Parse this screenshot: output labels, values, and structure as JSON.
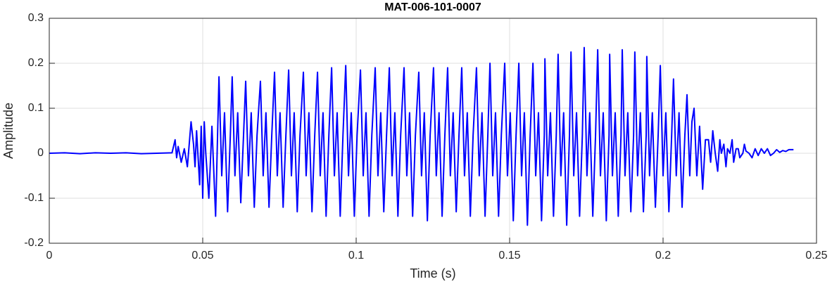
{
  "chart_data": {
    "type": "line",
    "title": "MAT-006-101-0007",
    "xlabel": "Time (s)",
    "ylabel": "Amplitude",
    "color": "#0000ff",
    "grid": true,
    "xlim": [
      0,
      0.25
    ],
    "xticks": [
      0,
      0.05,
      0.1,
      0.15,
      0.2,
      0.25
    ],
    "ylim": [
      -0.2,
      0.3
    ],
    "yticks": [
      -0.2,
      -0.1,
      0,
      0.1,
      0.2,
      0.3
    ],
    "x": [
      0,
      0.005,
      0.01,
      0.015,
      0.02,
      0.025,
      0.03,
      0.035,
      0.04,
      0.041,
      0.0415,
      0.042,
      0.043,
      0.044,
      0.045,
      0.0462,
      0.047,
      0.0475,
      0.048,
      0.049,
      0.0495,
      0.05,
      0.0505,
      0.051,
      0.052,
      0.053,
      0.0542,
      0.0553,
      0.0562,
      0.0571,
      0.0581,
      0.059,
      0.0596,
      0.0605,
      0.0614,
      0.0624,
      0.0633,
      0.064,
      0.0649,
      0.0658,
      0.0668,
      0.0677,
      0.0688,
      0.0697,
      0.0706,
      0.0716,
      0.0725,
      0.0734,
      0.0743,
      0.0752,
      0.0762,
      0.0771,
      0.078,
      0.0789,
      0.0798,
      0.0808,
      0.0817,
      0.0828,
      0.0837,
      0.0846,
      0.0856,
      0.0865,
      0.0874,
      0.0883,
      0.0892,
      0.0902,
      0.0911,
      0.092,
      0.0929,
      0.0938,
      0.0948,
      0.0957,
      0.0966,
      0.0975,
      0.0984,
      0.0994,
      0.1003,
      0.1014,
      0.1023,
      0.1032,
      0.1042,
      0.1051,
      0.1062,
      0.1071,
      0.108,
      0.109,
      0.1099,
      0.1108,
      0.1117,
      0.1126,
      0.1136,
      0.1145,
      0.1156,
      0.1165,
      0.1174,
      0.1184,
      0.1193,
      0.1204,
      0.1213,
      0.1222,
      0.1232,
      0.1241,
      0.1252,
      0.1261,
      0.127,
      0.128,
      0.1289,
      0.1298,
      0.1307,
      0.1316,
      0.1326,
      0.1335,
      0.1344,
      0.1353,
      0.1362,
      0.1372,
      0.1381,
      0.1392,
      0.1401,
      0.141,
      0.142,
      0.1429,
      0.1436,
      0.1445,
      0.1454,
      0.1464,
      0.1473,
      0.1484,
      0.1493,
      0.1502,
      0.1512,
      0.1521,
      0.153,
      0.1539,
      0.1548,
      0.1558,
      0.1567,
      0.1576,
      0.1585,
      0.1594,
      0.1604,
      0.1613,
      0.1615,
      0.1624,
      0.1633,
      0.1643,
      0.1652,
      0.1658,
      0.1667,
      0.1676,
      0.1686,
      0.1695,
      0.17,
      0.1709,
      0.1718,
      0.1728,
      0.1737,
      0.1743,
      0.1752,
      0.1761,
      0.1771,
      0.178,
      0.1787,
      0.1796,
      0.1805,
      0.1815,
      0.1824,
      0.1826,
      0.1835,
      0.1844,
      0.1854,
      0.1863,
      0.1867,
      0.1876,
      0.1885,
      0.1895,
      0.1904,
      0.1908,
      0.1917,
      0.1926,
      0.1936,
      0.1945,
      0.1947,
      0.1956,
      0.1965,
      0.1975,
      0.1984,
      0.1991,
      0.2,
      0.2009,
      0.2019,
      0.2028,
      0.2034,
      0.2043,
      0.2052,
      0.2062,
      0.2071,
      0.2078,
      0.2087,
      0.2094,
      0.2101,
      0.211,
      0.2119,
      0.2129,
      0.2138,
      0.2148,
      0.2155,
      0.2162,
      0.217,
      0.2178,
      0.2185,
      0.219,
      0.2198,
      0.2205,
      0.221,
      0.2218,
      0.2225,
      0.223,
      0.2238,
      0.2245,
      0.225,
      0.226,
      0.2265,
      0.227,
      0.228,
      0.229,
      0.23,
      0.231,
      0.232,
      0.233,
      0.234,
      0.235,
      0.236,
      0.237,
      0.238,
      0.239,
      0.24,
      0.241,
      0.2425
    ],
    "values": [
      0,
      0.001,
      -0.001,
      0.001,
      0,
      0.001,
      -0.001,
      0,
      0.001,
      0.03,
      -0.01,
      0.015,
      -0.02,
      0.01,
      -0.03,
      0.07,
      0.02,
      -0.03,
      0.05,
      -0.07,
      0.06,
      -0.1,
      0.07,
      0,
      -0.1,
      0.06,
      -0.14,
      0.17,
      -0.05,
      0.09,
      -0.13,
      0.04,
      0.17,
      -0.05,
      0.09,
      -0.11,
      0.04,
      0.16,
      -0.05,
      0.09,
      -0.12,
      0.04,
      0.16,
      -0.05,
      0.09,
      -0.12,
      0.04,
      0.18,
      -0.05,
      0.09,
      -0.12,
      0.04,
      0.185,
      -0.05,
      0.09,
      -0.13,
      0.04,
      0.18,
      -0.05,
      0.09,
      -0.13,
      0.04,
      0.18,
      -0.05,
      0.09,
      -0.14,
      0.04,
      0.19,
      -0.05,
      0.09,
      -0.14,
      0.04,
      0.195,
      -0.05,
      0.09,
      -0.14,
      0.04,
      0.185,
      -0.05,
      0.09,
      -0.14,
      0.04,
      0.19,
      -0.05,
      0.09,
      -0.13,
      0.04,
      0.19,
      -0.05,
      0.09,
      -0.14,
      0.04,
      0.19,
      -0.05,
      0.09,
      -0.14,
      0.04,
      0.18,
      -0.05,
      0.09,
      -0.15,
      0.04,
      0.19,
      -0.05,
      0.09,
      -0.14,
      0.04,
      0.19,
      -0.05,
      0.09,
      -0.13,
      0.04,
      0.19,
      -0.05,
      0.09,
      -0.14,
      0.04,
      0.19,
      -0.05,
      0.09,
      -0.14,
      0.04,
      0.2,
      -0.05,
      0.09,
      -0.14,
      0.04,
      0.2,
      -0.05,
      0.09,
      -0.15,
      0.04,
      0.2,
      -0.05,
      0.09,
      -0.16,
      0.04,
      0.2,
      -0.05,
      0.09,
      -0.15,
      0.04,
      0.21,
      -0.05,
      0.09,
      -0.14,
      0.04,
      0.22,
      -0.05,
      0.09,
      -0.16,
      0.04,
      0.225,
      -0.05,
      0.09,
      -0.14,
      0.04,
      0.235,
      -0.05,
      0.09,
      -0.14,
      0.04,
      0.23,
      -0.05,
      0.09,
      -0.15,
      0.04,
      0.22,
      -0.05,
      0.09,
      -0.14,
      0.04,
      0.23,
      -0.05,
      0.09,
      -0.13,
      0.04,
      0.225,
      -0.05,
      0.09,
      -0.13,
      0.04,
      0.215,
      -0.05,
      0.09,
      -0.12,
      0.04,
      0.195,
      -0.05,
      0.09,
      -0.13,
      0.04,
      0.165,
      -0.05,
      0.09,
      -0.12,
      0.04,
      0.13,
      -0.05,
      0.07,
      0.1,
      -0.05,
      0.06,
      -0.08,
      0.03,
      0.03,
      -0.02,
      0.05,
      0,
      -0.04,
      0.03,
      0,
      0.02,
      -0.03,
      0.01,
      0,
      0.03,
      -0.02,
      0.01,
      0.01,
      -0.01,
      0,
      0.02,
      0.005,
      0,
      -0.01,
      0.01,
      -0.005,
      0.01,
      0,
      0.01,
      -0.005,
      0,
      0.008,
      0.002,
      0.006,
      0.004,
      0.008,
      0.008
    ]
  }
}
